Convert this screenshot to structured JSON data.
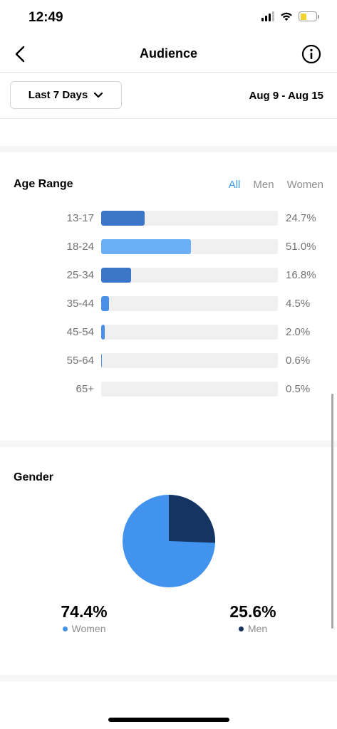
{
  "status_bar": {
    "time": "12:49"
  },
  "nav": {
    "title": "Audience",
    "back_icon": "chevron-left-icon",
    "info_icon": "info-icon"
  },
  "filter": {
    "range_label": "Last 7 Days",
    "dates": "Aug 9 - Aug 15"
  },
  "age_range": {
    "title": "Age Range",
    "tabs": [
      {
        "label": "All",
        "active": true
      },
      {
        "label": "Men",
        "active": false
      },
      {
        "label": "Women",
        "active": false
      }
    ],
    "rows": [
      {
        "label": "13-17",
        "value": 24.7,
        "pct": "24.7%",
        "color": "#3b76c9"
      },
      {
        "label": "18-24",
        "value": 51.0,
        "pct": "51.0%",
        "color": "#6aaef5"
      },
      {
        "label": "25-34",
        "value": 16.8,
        "pct": "16.8%",
        "color": "#3b76c9"
      },
      {
        "label": "35-44",
        "value": 4.5,
        "pct": "4.5%",
        "color": "#4a8fe7"
      },
      {
        "label": "45-54",
        "value": 2.0,
        "pct": "2.0%",
        "color": "#4a8fe7"
      },
      {
        "label": "55-64",
        "value": 0.6,
        "pct": "0.6%",
        "color": "#4a8fe7"
      },
      {
        "label": "65+",
        "value": 0.5,
        "pct": "0.5%",
        "color": "#f0f0f0"
      }
    ]
  },
  "gender": {
    "title": "Gender",
    "women": {
      "value": "74.4%",
      "label": "Women",
      "share": 74.4,
      "color": "#4193ee"
    },
    "men": {
      "value": "25.6%",
      "label": "Men",
      "share": 25.6,
      "color": "#153462"
    }
  }
}
